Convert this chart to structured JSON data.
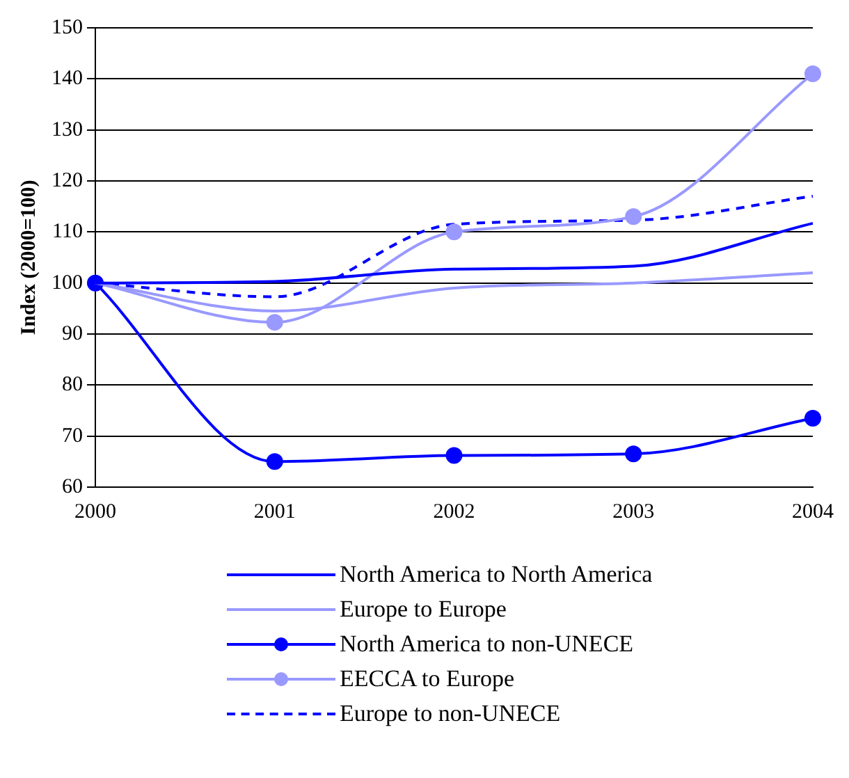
{
  "chart_data": {
    "type": "line",
    "ylabel": "Index (2000=100)",
    "categories": [
      "2000",
      "2001",
      "2002",
      "2003",
      "2004"
    ],
    "ylim": [
      60,
      150
    ],
    "yticks": [
      60,
      70,
      80,
      90,
      100,
      110,
      120,
      130,
      140,
      150
    ],
    "grid": "y",
    "legend": "bottom",
    "series": [
      {
        "name": "North America to North America",
        "color": "#0000ff",
        "values": [
          100,
          100.3,
          102.7,
          103.3,
          111.7
        ],
        "marker": "none",
        "line_style": "solid"
      },
      {
        "name": "Europe to Europe",
        "color": "#9999ff",
        "values": [
          100,
          94.5,
          99,
          100,
          102
        ],
        "marker": "none",
        "line_style": "solid"
      },
      {
        "name": "North America to non-UNECE",
        "color": "#0000ff",
        "values": [
          100,
          65,
          66.2,
          66.5,
          73.5
        ],
        "marker": "circle",
        "line_style": "solid"
      },
      {
        "name": "EECCA to Europe",
        "color": "#9999ff",
        "values": [
          100,
          92.3,
          110,
          113,
          141
        ],
        "marker": "circle",
        "line_style": "solid"
      },
      {
        "name": "Europe to non-UNECE",
        "color": "#0000ff",
        "values": [
          100,
          97.3,
          111.5,
          112.3,
          117
        ],
        "marker": "none",
        "line_style": "dashed"
      }
    ]
  }
}
